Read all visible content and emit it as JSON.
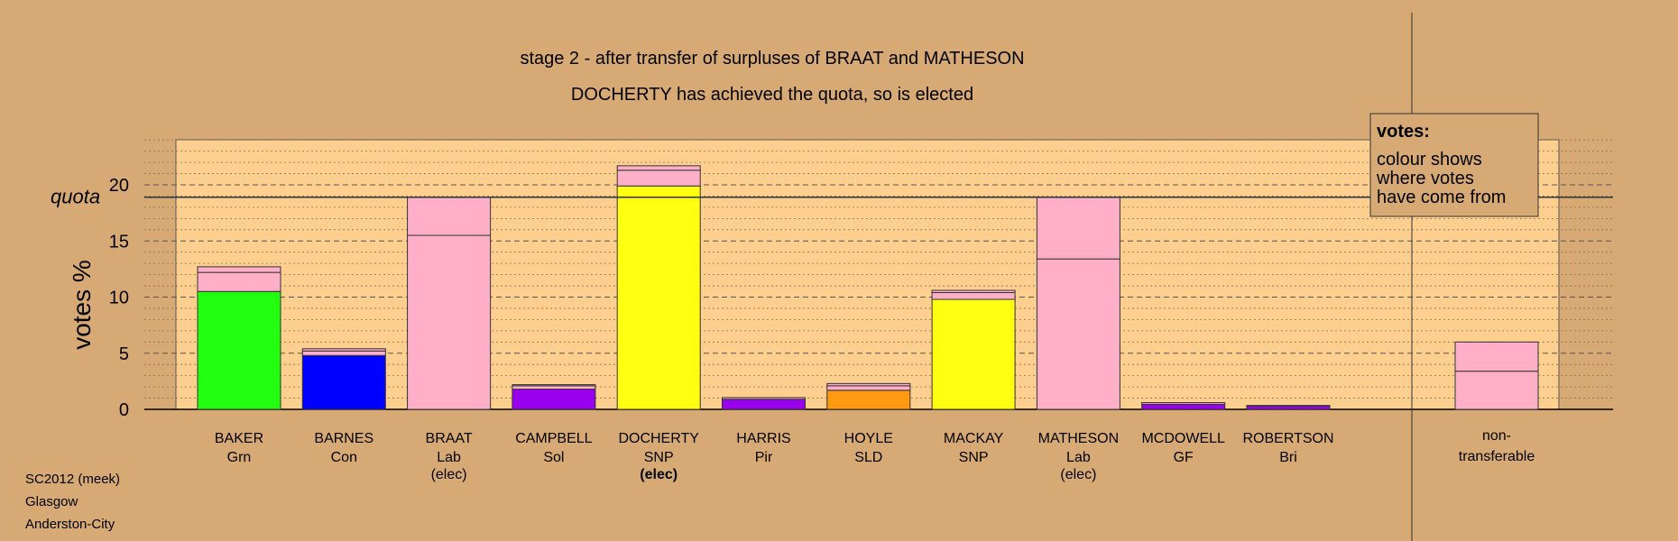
{
  "chart_data": {
    "type": "bar",
    "stacked": true,
    "title": "stage 2 - after transfer of surpluses of BRAAT and MATHESON",
    "subtitle": "DOCHERTY has achieved the quota, so is elected",
    "ylabel": "votes %",
    "ylim": [
      0,
      24
    ],
    "yticks": [
      0,
      5,
      10,
      15,
      20
    ],
    "quota": 18.9,
    "quota_label": "quota",
    "grid": true,
    "legend": {
      "placement": "top-right",
      "title": "votes:",
      "lines": [
        "colour shows",
        "where votes",
        "have come from"
      ]
    },
    "colors": {
      "Grn": "#22ff11",
      "Con": "#0000ff",
      "Lab": "#ffb0c8",
      "Sol": "#9900ee",
      "SNP": "#ffff11",
      "Pir": "#9900ee",
      "SLD": "#ff9911",
      "GF": "#9900ee",
      "Bri": "#9900ee",
      "plot_bg": "#ffcf90",
      "page_bg": "#d6a975"
    },
    "candidates": [
      {
        "name": "BAKER",
        "party": "Grn",
        "note": "",
        "note_bold": false,
        "segments": [
          {
            "value": 10.5,
            "from": "Grn"
          },
          {
            "value": 1.7,
            "from": "Lab"
          },
          {
            "value": 0.5,
            "from": "Lab"
          }
        ]
      },
      {
        "name": "BARNES",
        "party": "Con",
        "note": "",
        "note_bold": false,
        "segments": [
          {
            "value": 4.8,
            "from": "Con"
          },
          {
            "value": 0.4,
            "from": "Lab"
          },
          {
            "value": 0.2,
            "from": "Lab"
          }
        ]
      },
      {
        "name": "BRAAT",
        "party": "Lab",
        "note": "(elec)",
        "note_bold": false,
        "segments": [
          {
            "value": 15.5,
            "from": "Lab"
          },
          {
            "value": 3.4,
            "from": "Lab"
          }
        ]
      },
      {
        "name": "CAMPBELL",
        "party": "Sol",
        "note": "",
        "note_bold": false,
        "segments": [
          {
            "value": 1.8,
            "from": "Sol"
          },
          {
            "value": 0.3,
            "from": "Lab"
          },
          {
            "value": 0.1,
            "from": "Lab"
          }
        ]
      },
      {
        "name": "DOCHERTY",
        "party": "SNP",
        "note": "(elec)",
        "note_bold": true,
        "segments": [
          {
            "value": 19.9,
            "from": "SNP"
          },
          {
            "value": 1.4,
            "from": "Lab"
          },
          {
            "value": 0.4,
            "from": "Lab"
          }
        ]
      },
      {
        "name": "HARRIS",
        "party": "Pir",
        "note": "",
        "note_bold": false,
        "segments": [
          {
            "value": 0.9,
            "from": "Pir"
          },
          {
            "value": 0.15,
            "from": "Lab"
          }
        ]
      },
      {
        "name": "HOYLE",
        "party": "SLD",
        "note": "",
        "note_bold": false,
        "segments": [
          {
            "value": 1.7,
            "from": "SLD"
          },
          {
            "value": 0.4,
            "from": "Lab"
          },
          {
            "value": 0.2,
            "from": "Lab"
          }
        ]
      },
      {
        "name": "MACKAY",
        "party": "SNP",
        "note": "",
        "note_bold": false,
        "segments": [
          {
            "value": 9.8,
            "from": "SNP"
          },
          {
            "value": 0.6,
            "from": "Lab"
          },
          {
            "value": 0.2,
            "from": "Lab"
          }
        ]
      },
      {
        "name": "MATHESON",
        "party": "Lab",
        "note": "(elec)",
        "note_bold": false,
        "segments": [
          {
            "value": 13.4,
            "from": "Lab"
          },
          {
            "value": 5.5,
            "from": "Lab"
          }
        ]
      },
      {
        "name": "MCDOWELL",
        "party": "GF",
        "note": "",
        "note_bold": false,
        "segments": [
          {
            "value": 0.45,
            "from": "GF"
          },
          {
            "value": 0.15,
            "from": "Lab"
          }
        ]
      },
      {
        "name": "ROBERTSON",
        "party": "Bri",
        "note": "",
        "note_bold": false,
        "segments": [
          {
            "value": 0.3,
            "from": "Bri"
          },
          {
            "value": 0.05,
            "from": "Lab"
          }
        ]
      }
    ],
    "nontransferable": {
      "label_line1": "non-",
      "label_line2": "transferable",
      "segments": [
        {
          "value": 3.4,
          "from": "Lab"
        },
        {
          "value": 2.6,
          "from": "Lab"
        }
      ]
    }
  },
  "footer": {
    "line1": "SC2012 (meek)",
    "line2": "Glasgow",
    "line3": "Anderston-City"
  }
}
